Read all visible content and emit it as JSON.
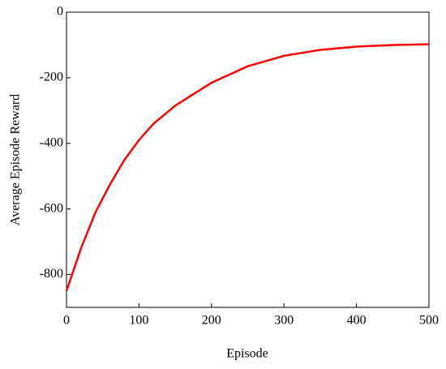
{
  "chart_data": {
    "type": "line",
    "x_label": "Episode",
    "y_label": "Average Episode Reward",
    "x": [
      0,
      20,
      40,
      60,
      80,
      100,
      120,
      150,
      200,
      250,
      300,
      350,
      400,
      450,
      500
    ],
    "series": [
      {
        "color": "#ff0000",
        "values": [
          -850,
          -720,
          -610,
          -525,
          -450,
          -390,
          -340,
          -285,
          -215,
          -165,
          -133,
          -115,
          -105,
          -100,
          -98
        ]
      }
    ],
    "xlim": [
      0,
      500
    ],
    "xticks": [
      0,
      100,
      200,
      300,
      400,
      500
    ],
    "ylim": [
      -900,
      0
    ],
    "yticks": [
      -800,
      -600,
      -400,
      -200,
      0
    ]
  }
}
